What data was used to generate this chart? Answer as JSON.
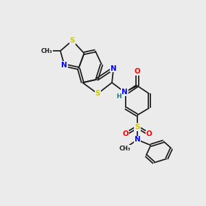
{
  "bg_color": "#ebebeb",
  "bond_color": "#1a1a1a",
  "atom_colors": {
    "S": "#cccc00",
    "N": "#0000ff",
    "O": "#ff0000",
    "H": "#008080",
    "C": "#1a1a1a"
  },
  "font_size": 7.5
}
